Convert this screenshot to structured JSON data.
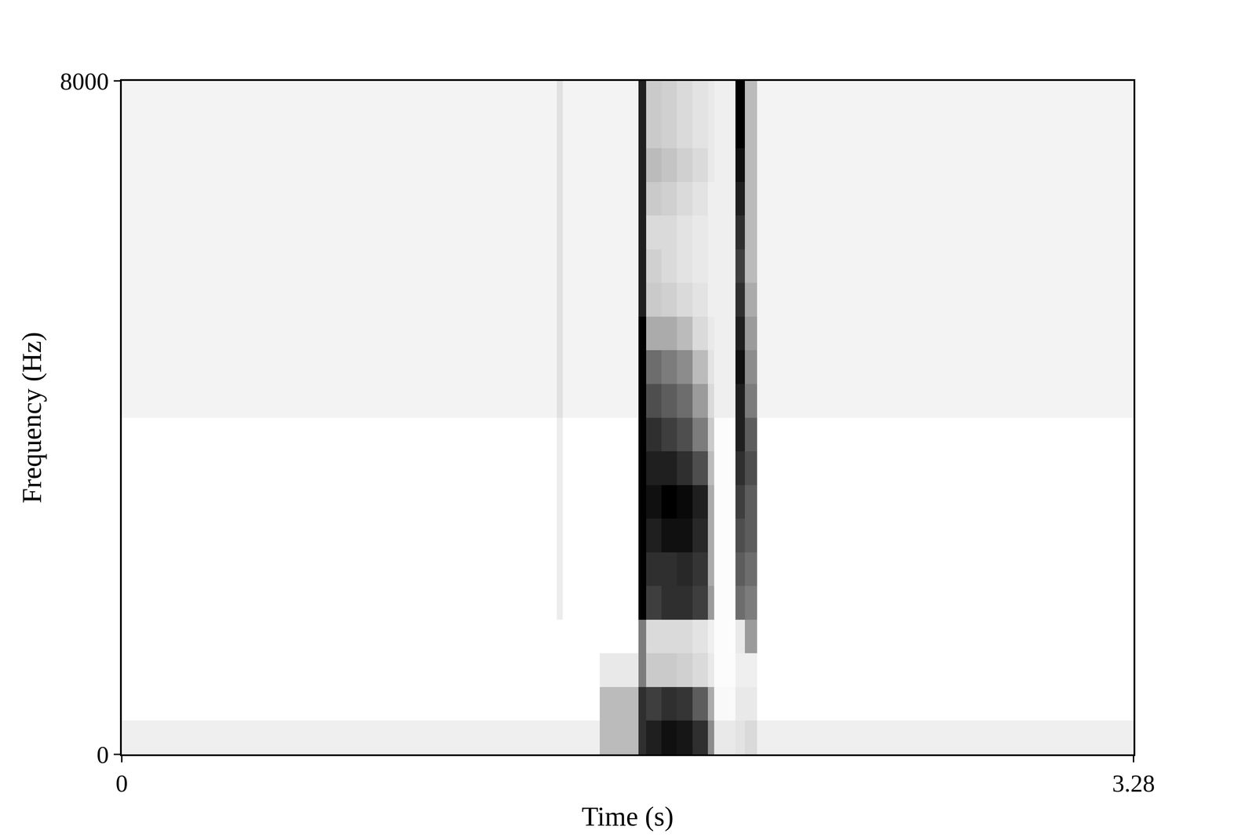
{
  "chart_data": {
    "type": "heatmap",
    "x_label": "Time (s)",
    "y_label": "Frequency (Hz)",
    "x": [
      0,
      1.41,
      1.43,
      1.55,
      1.675,
      1.7,
      1.75,
      1.8,
      1.85,
      1.9,
      1.92,
      1.99,
      2.02,
      2.06,
      2.1,
      3.28
    ],
    "y": [
      0,
      400,
      800,
      1200,
      1600,
      2000,
      2400,
      2800,
      3200,
      3600,
      4000,
      4400,
      4800,
      5200,
      5600,
      6000,
      6400,
      6800,
      7200,
      7600,
      8000
    ],
    "z": [
      [
        8,
        8,
        8,
        25,
        70,
        75,
        80,
        78,
        70,
        40,
        10,
        12,
        15,
        8,
        8
      ],
      [
        3,
        3,
        3,
        25,
        70,
        65,
        70,
        68,
        55,
        30,
        5,
        10,
        10,
        3,
        3
      ],
      [
        3,
        3,
        3,
        10,
        45,
        20,
        20,
        18,
        15,
        10,
        4,
        8,
        8,
        3,
        3
      ],
      [
        3,
        3,
        3,
        3,
        45,
        15,
        15,
        15,
        12,
        8,
        4,
        10,
        35,
        3,
        3
      ],
      [
        3,
        9,
        3,
        3,
        85,
        65,
        70,
        70,
        65,
        35,
        4,
        50,
        45,
        3,
        3
      ],
      [
        3,
        9,
        3,
        3,
        85,
        70,
        70,
        72,
        68,
        30,
        4,
        55,
        50,
        3,
        3
      ],
      [
        3,
        9,
        3,
        3,
        85,
        75,
        80,
        80,
        72,
        30,
        4,
        60,
        55,
        3,
        3
      ],
      [
        3,
        9,
        3,
        3,
        85,
        80,
        85,
        82,
        75,
        30,
        4,
        65,
        55,
        3,
        3
      ],
      [
        3,
        9,
        3,
        3,
        85,
        75,
        75,
        70,
        60,
        25,
        4,
        70,
        60,
        3,
        3
      ],
      [
        3,
        9,
        3,
        3,
        85,
        70,
        65,
        60,
        45,
        20,
        4,
        75,
        55,
        3,
        3
      ],
      [
        7,
        13,
        7,
        7,
        85,
        60,
        55,
        50,
        35,
        15,
        8,
        75,
        45,
        7,
        7
      ],
      [
        7,
        13,
        7,
        7,
        85,
        50,
        45,
        40,
        25,
        12,
        8,
        80,
        40,
        7,
        7
      ],
      [
        7,
        13,
        7,
        7,
        85,
        30,
        30,
        25,
        15,
        10,
        8,
        75,
        35,
        7,
        7
      ],
      [
        7,
        13,
        7,
        7,
        75,
        20,
        18,
        15,
        12,
        8,
        8,
        70,
        30,
        7,
        7
      ],
      [
        7,
        13,
        7,
        7,
        75,
        18,
        15,
        12,
        10,
        8,
        8,
        65,
        25,
        7,
        7
      ],
      [
        7,
        13,
        7,
        7,
        75,
        15,
        15,
        12,
        10,
        8,
        8,
        70,
        25,
        7,
        7
      ],
      [
        7,
        13,
        7,
        7,
        75,
        20,
        18,
        15,
        12,
        8,
        8,
        75,
        25,
        7,
        7
      ],
      [
        7,
        13,
        7,
        7,
        75,
        25,
        22,
        18,
        15,
        10,
        8,
        80,
        25,
        7,
        7
      ],
      [
        7,
        13,
        7,
        7,
        75,
        20,
        18,
        15,
        12,
        10,
        8,
        85,
        25,
        7,
        7
      ],
      [
        7,
        13,
        7,
        7,
        75,
        20,
        18,
        15,
        12,
        10,
        8,
        85,
        25,
        7,
        7
      ]
    ],
    "color": "#000000",
    "xlim": [
      0,
      3.28
    ],
    "xticks": [
      0,
      3.28
    ],
    "ylim": [
      0,
      8000
    ],
    "yticks": [
      0,
      8000
    ],
    "grid": false
  }
}
